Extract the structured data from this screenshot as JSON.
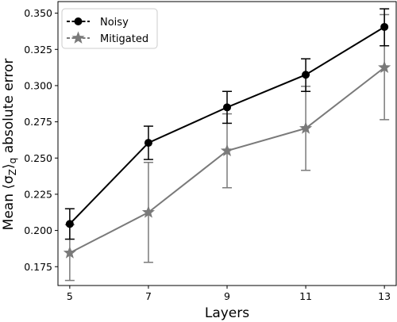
{
  "chart_data": {
    "type": "line",
    "title": "",
    "xlabel": "Layers",
    "ylabel": "Mean ⟨σ_Z⟩_q absolute error",
    "ylabel_parts": {
      "prefix": "Mean ⟨σ",
      "sub1": "Z",
      "mid": "⟩",
      "sub2": "q",
      "suffix": " absolute error"
    },
    "x": [
      5,
      7,
      9,
      11,
      13
    ],
    "xticks": [
      "5",
      "7",
      "9",
      "11",
      "13"
    ],
    "yticks": [
      "0.175",
      "0.200",
      "0.225",
      "0.250",
      "0.275",
      "0.300",
      "0.325",
      "0.350"
    ],
    "ytick_values": [
      0.175,
      0.2,
      0.225,
      0.25,
      0.275,
      0.3,
      0.325,
      0.35
    ],
    "xlim": [
      4.7,
      13.3
    ],
    "ylim": [
      0.162,
      0.358
    ],
    "grid": false,
    "legend_position": "top-left",
    "series": [
      {
        "name": "Noisy",
        "color": "#000000",
        "marker": "circle",
        "values": [
          0.2045,
          0.2605,
          0.285,
          0.3075,
          0.3405
        ],
        "err_low": [
          0.194,
          0.249,
          0.274,
          0.296,
          0.3275
        ],
        "err_high": [
          0.215,
          0.272,
          0.296,
          0.3185,
          0.353
        ]
      },
      {
        "name": "Mitigated",
        "color": "#7a7a7a",
        "marker": "star",
        "values": [
          0.1845,
          0.2125,
          0.255,
          0.2705,
          0.3125
        ],
        "err_low": [
          0.1655,
          0.178,
          0.2295,
          0.2415,
          0.2765
        ],
        "err_high": [
          0.204,
          0.247,
          0.2805,
          0.2995,
          0.349
        ]
      }
    ]
  }
}
